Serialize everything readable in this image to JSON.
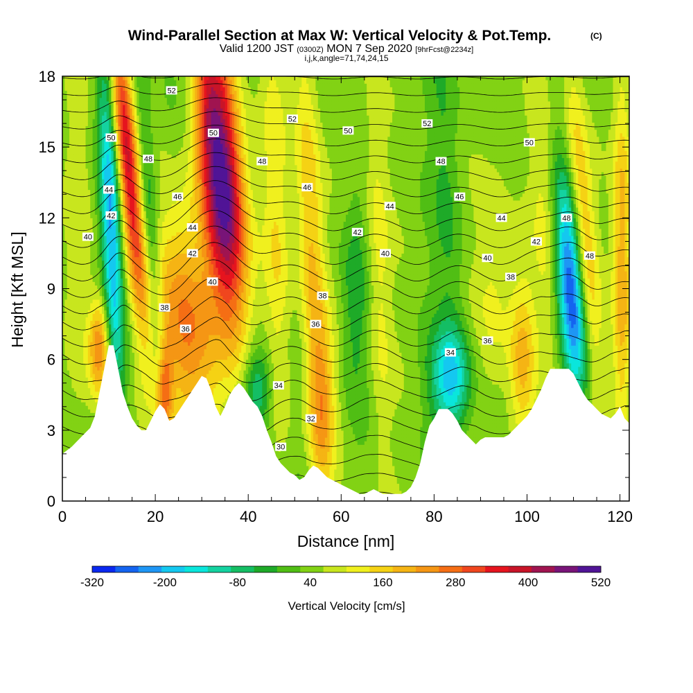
{
  "chart_data": {
    "type": "heatmap",
    "title": "Wind-Parallel Section at Max W: Vertical Velocity & Pot.Temp.",
    "title_mark": "(C)",
    "subtitle": {
      "valid": "Valid 1200 JST",
      "utc": "(0300Z)",
      "date": "MON 7 Sep 2020",
      "fcst": "[9hrFcst@2234z]"
    },
    "subtitle2": "i,j,k,angle=71,74,24,15",
    "xlabel": "Distance [nm]",
    "ylabel": "Height [Kft MSL]",
    "xlim": [
      0,
      122
    ],
    "ylim": [
      0,
      18
    ],
    "xticks": [
      0,
      20,
      40,
      60,
      80,
      100,
      120
    ],
    "yticks": [
      0,
      3,
      6,
      9,
      12,
      15,
      18
    ],
    "colorbar": {
      "label": "Vertical Velocity [cm/s]",
      "tick_values": [
        -320,
        -200,
        -80,
        40,
        160,
        280,
        400,
        520
      ],
      "colors": [
        "#0a28f0",
        "#1464f0",
        "#1e96f5",
        "#14c8f0",
        "#0ae6dc",
        "#14d2a0",
        "#14be64",
        "#1eaa28",
        "#50be14",
        "#82d214",
        "#c8e61e",
        "#f0f01e",
        "#f5d214",
        "#f5b414",
        "#f59614",
        "#f56e14",
        "#f0461e",
        "#e6141e",
        "#c81428",
        "#a01450",
        "#781478",
        "#501496"
      ]
    },
    "terrain": [
      [
        0,
        2
      ],
      [
        2,
        2.3
      ],
      [
        4,
        2.7
      ],
      [
        6,
        3.1
      ],
      [
        7,
        3.6
      ],
      [
        8,
        4.6
      ],
      [
        9,
        5.6
      ],
      [
        10,
        6.6
      ],
      [
        11,
        6.6
      ],
      [
        12,
        5.6
      ],
      [
        13,
        4.6
      ],
      [
        14,
        4.0
      ],
      [
        15,
        3.5
      ],
      [
        16,
        3.2
      ],
      [
        17,
        3.0
      ],
      [
        18,
        3.0
      ],
      [
        19,
        3.4
      ],
      [
        20,
        3.8
      ],
      [
        21,
        4.1
      ],
      [
        22,
        3.9
      ],
      [
        23,
        3.4
      ],
      [
        24,
        3.5
      ],
      [
        25,
        3.8
      ],
      [
        26,
        4.1
      ],
      [
        27,
        4.4
      ],
      [
        28,
        4.7
      ],
      [
        29,
        5.0
      ],
      [
        30,
        5.3
      ],
      [
        31,
        5.2
      ],
      [
        32,
        4.7
      ],
      [
        33,
        4.0
      ],
      [
        34,
        3.6
      ],
      [
        35,
        4.0
      ],
      [
        36,
        4.5
      ],
      [
        37,
        4.8
      ],
      [
        38,
        5.0
      ],
      [
        39,
        4.8
      ],
      [
        40,
        4.5
      ],
      [
        41,
        4.2
      ],
      [
        42,
        4.0
      ],
      [
        43,
        3.6
      ],
      [
        44,
        3.0
      ],
      [
        45,
        2.5
      ],
      [
        46,
        1.9
      ],
      [
        47,
        1.6
      ],
      [
        48,
        1.4
      ],
      [
        49,
        1.2
      ],
      [
        50,
        1.1
      ],
      [
        51,
        0.9
      ],
      [
        52,
        1.0
      ],
      [
        53,
        1.3
      ],
      [
        54,
        1.5
      ],
      [
        55,
        1.4
      ],
      [
        56,
        1.2
      ],
      [
        57,
        1.0
      ],
      [
        58,
        0.9
      ],
      [
        59,
        0.8
      ],
      [
        60,
        0.7
      ],
      [
        61,
        0.6
      ],
      [
        62,
        0.5
      ],
      [
        63,
        0.4
      ],
      [
        64,
        0.3
      ],
      [
        65,
        0.3
      ],
      [
        66,
        0.4
      ],
      [
        67,
        0.5
      ],
      [
        68,
        0.4
      ],
      [
        69,
        0.3
      ],
      [
        70,
        0.3
      ],
      [
        71,
        0.3
      ],
      [
        72,
        0.3
      ],
      [
        73,
        0.3
      ],
      [
        74,
        0.4
      ],
      [
        75,
        0.6
      ],
      [
        76,
        1.0
      ],
      [
        77,
        1.6
      ],
      [
        78,
        2.5
      ],
      [
        79,
        3.2
      ],
      [
        80,
        3.5
      ],
      [
        81,
        3.9
      ],
      [
        82,
        3.9
      ],
      [
        83,
        3.9
      ],
      [
        84,
        3.7
      ],
      [
        85,
        3.4
      ],
      [
        86,
        3.0
      ],
      [
        87,
        2.8
      ],
      [
        88,
        2.6
      ],
      [
        89,
        2.4
      ],
      [
        90,
        2.6
      ],
      [
        91,
        2.7
      ],
      [
        92,
        2.7
      ],
      [
        93,
        2.7
      ],
      [
        94,
        2.7
      ],
      [
        95,
        2.7
      ],
      [
        96,
        2.8
      ],
      [
        97,
        3.0
      ],
      [
        98,
        3.2
      ],
      [
        99,
        3.4
      ],
      [
        100,
        3.6
      ],
      [
        101,
        3.9
      ],
      [
        102,
        4.3
      ],
      [
        103,
        4.7
      ],
      [
        104,
        5.2
      ],
      [
        105,
        5.6
      ],
      [
        106,
        5.6
      ],
      [
        107,
        5.6
      ],
      [
        108,
        5.6
      ],
      [
        109,
        5.6
      ],
      [
        110,
        5.4
      ],
      [
        111,
        5.0
      ],
      [
        112,
        4.6
      ],
      [
        113,
        4.3
      ],
      [
        114,
        4.1
      ],
      [
        115,
        3.9
      ],
      [
        116,
        3.7
      ],
      [
        117,
        3.6
      ],
      [
        118,
        3.5
      ],
      [
        119,
        3.7
      ],
      [
        120,
        4.0
      ],
      [
        121,
        3.5
      ],
      [
        122,
        3.3
      ]
    ],
    "w_features": [
      {
        "x": 34.5,
        "y": 13.5,
        "sx": 3.2,
        "sy": 4.5,
        "tilt": -0.35,
        "amp": 480
      },
      {
        "x": 26,
        "y": 7.5,
        "sx": 4.5,
        "sy": 3.5,
        "tilt": -0.35,
        "amp": 230
      },
      {
        "x": 14,
        "y": 14.5,
        "sx": 1.6,
        "sy": 4.5,
        "tilt": -0.45,
        "amp": 340
      },
      {
        "x": 10.5,
        "y": 11.5,
        "sx": 1.5,
        "sy": 5.0,
        "tilt": -0.2,
        "amp": -240
      },
      {
        "x": 8,
        "y": 6.5,
        "sx": 1.6,
        "sy": 1.5,
        "tilt": 0,
        "amp": 220
      },
      {
        "x": 19,
        "y": 11.5,
        "sx": 1.3,
        "sy": 5.0,
        "tilt": -0.3,
        "amp": -110
      },
      {
        "x": 22,
        "y": 4.5,
        "sx": 1.2,
        "sy": 1.5,
        "tilt": 0,
        "amp": 200
      },
      {
        "x": 42,
        "y": 4.8,
        "sx": 2.2,
        "sy": 1.3,
        "tilt": 0,
        "amp": -150
      },
      {
        "x": 53.5,
        "y": 11.0,
        "sx": 2.0,
        "sy": 6.5,
        "tilt": -0.2,
        "amp": 160
      },
      {
        "x": 46,
        "y": 12.0,
        "sx": 2.0,
        "sy": 6.0,
        "tilt": -0.1,
        "amp": 90
      },
      {
        "x": 56,
        "y": 4.0,
        "sx": 2.0,
        "sy": 2.5,
        "tilt": 0,
        "amp": 140
      },
      {
        "x": 63,
        "y": 8.5,
        "sx": 2.2,
        "sy": 3.0,
        "tilt": 0,
        "amp": -80
      },
      {
        "x": 68,
        "y": 10.5,
        "sx": 2.0,
        "sy": 7.0,
        "tilt": -0.1,
        "amp": 90
      },
      {
        "x": 83.5,
        "y": 5.2,
        "sx": 3.0,
        "sy": 1.5,
        "tilt": 0,
        "amp": -200
      },
      {
        "x": 83,
        "y": 12.0,
        "sx": 2.2,
        "sy": 6.5,
        "tilt": -0.2,
        "amp": -50
      },
      {
        "x": 93,
        "y": 9.0,
        "sx": 3.0,
        "sy": 4.0,
        "tilt": 0,
        "amp": 80
      },
      {
        "x": 109.5,
        "y": 9.0,
        "sx": 2.0,
        "sy": 3.2,
        "tilt": -0.35,
        "amp": -310
      },
      {
        "x": 112,
        "y": 12.0,
        "sx": 1.8,
        "sy": 5.0,
        "tilt": -0.4,
        "amp": 150
      },
      {
        "x": 99,
        "y": 6.0,
        "sx": 2.0,
        "sy": 2.5,
        "tilt": 0,
        "amp": 140
      },
      {
        "x": 120.5,
        "y": 10.0,
        "sx": 1.5,
        "sy": 6.0,
        "tilt": 0,
        "amp": 180
      },
      {
        "x": 104,
        "y": 11.5,
        "sx": 2.0,
        "sy": 5.0,
        "tilt": -0.2,
        "amp": 70
      },
      {
        "x": 3,
        "y": 12.0,
        "sx": 2.5,
        "sy": 6.0,
        "tilt": 0,
        "amp": 40
      },
      {
        "x": 31,
        "y": 16.5,
        "sx": 1.5,
        "sy": 2.0,
        "tilt": 0,
        "amp": 60
      }
    ],
    "theta_levels": {
      "min": 28,
      "max": 54,
      "step": 1
    },
    "contour_labels": [
      {
        "text": "52",
        "x": 23.5,
        "y": 17.4
      },
      {
        "text": "52",
        "x": 49.5,
        "y": 16.2
      },
      {
        "text": "52",
        "x": 78.5,
        "y": 16.0
      },
      {
        "text": "50",
        "x": 10.5,
        "y": 15.4
      },
      {
        "text": "50",
        "x": 32.5,
        "y": 15.6
      },
      {
        "text": "50",
        "x": 61.5,
        "y": 15.7
      },
      {
        "text": "50",
        "x": 100.5,
        "y": 15.2
      },
      {
        "text": "48",
        "x": 18.5,
        "y": 14.5
      },
      {
        "text": "48",
        "x": 43,
        "y": 14.4
      },
      {
        "text": "48",
        "x": 81.5,
        "y": 14.4
      },
      {
        "text": "48",
        "x": 108.5,
        "y": 12.0
      },
      {
        "text": "48",
        "x": 113.5,
        "y": 10.4
      },
      {
        "text": "46",
        "x": 24.8,
        "y": 12.9
      },
      {
        "text": "46",
        "x": 52.7,
        "y": 13.3
      },
      {
        "text": "46",
        "x": 85.5,
        "y": 12.9
      },
      {
        "text": "44",
        "x": 10,
        "y": 13.2
      },
      {
        "text": "44",
        "x": 70.5,
        "y": 12.5
      },
      {
        "text": "44",
        "x": 94.5,
        "y": 12.0
      },
      {
        "text": "44",
        "x": 28,
        "y": 11.6
      },
      {
        "text": "42",
        "x": 10.5,
        "y": 12.1
      },
      {
        "text": "42",
        "x": 63.5,
        "y": 11.4
      },
      {
        "text": "42",
        "x": 102,
        "y": 11.0
      },
      {
        "text": "42",
        "x": 28,
        "y": 10.5
      },
      {
        "text": "40",
        "x": 5.5,
        "y": 11.2
      },
      {
        "text": "40",
        "x": 69.5,
        "y": 10.5
      },
      {
        "text": "40",
        "x": 91.5,
        "y": 10.3
      },
      {
        "text": "40",
        "x": 32.3,
        "y": 9.3
      },
      {
        "text": "38",
        "x": 22,
        "y": 8.2
      },
      {
        "text": "38",
        "x": 56,
        "y": 8.7
      },
      {
        "text": "38",
        "x": 96.5,
        "y": 9.5
      },
      {
        "text": "36",
        "x": 26.5,
        "y": 7.3
      },
      {
        "text": "36",
        "x": 54.5,
        "y": 7.5
      },
      {
        "text": "36",
        "x": 91.5,
        "y": 6.8
      },
      {
        "text": "34",
        "x": 83.5,
        "y": 6.3
      },
      {
        "text": "34",
        "x": 46.5,
        "y": 4.9
      },
      {
        "text": "32",
        "x": 53.5,
        "y": 3.5
      },
      {
        "text": "30",
        "x": 47,
        "y": 2.3
      }
    ]
  }
}
